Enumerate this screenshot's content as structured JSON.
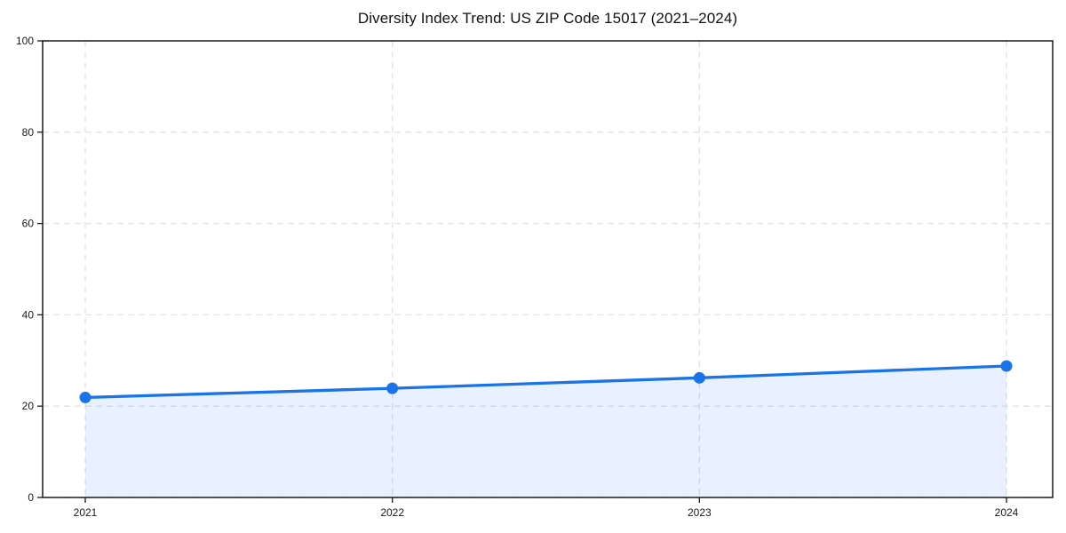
{
  "chart_data": {
    "type": "line",
    "title": "Diversity Index Trend: US ZIP Code 15017 (2021–2024)",
    "categories": [
      "2021",
      "2022",
      "2023",
      "2024"
    ],
    "series": [
      {
        "name": "Diversity Index",
        "values": [
          21.9,
          23.9,
          26.2,
          28.8
        ]
      }
    ],
    "xlabel": "",
    "ylabel": "",
    "ylim": [
      0,
      100
    ],
    "yticks": [
      0,
      20,
      40,
      60,
      80,
      100
    ],
    "grid": true,
    "grid_style": "dashed",
    "legend_position": "none",
    "marker": "circle",
    "area_fill": true,
    "colors": {
      "line": "#1a73e8",
      "marker": "#1a73e8",
      "fill": "rgba(26,115,232,0.10)",
      "grid": "#e2e2e2",
      "axis": "#1a1a1a",
      "text": "#1a1a1a",
      "title": "#111111"
    }
  }
}
